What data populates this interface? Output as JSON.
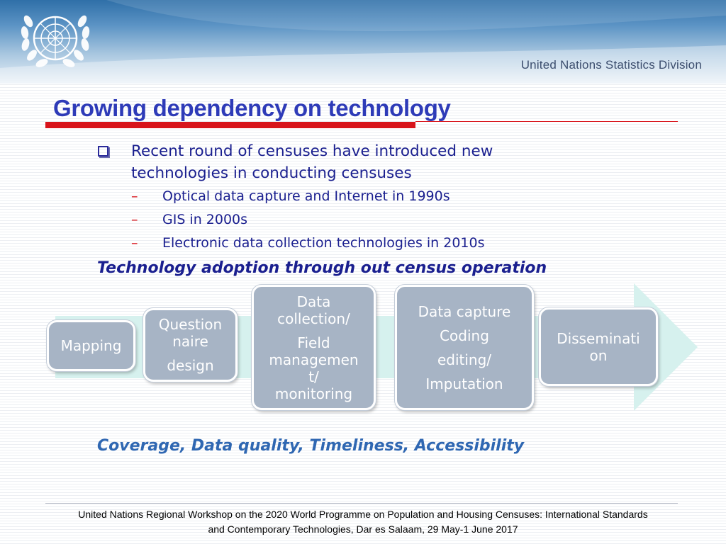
{
  "header": {
    "division": "United Nations Statistics Division",
    "logo_icon": "un-emblem-icon",
    "colors": {
      "band_top": "#2f6fa8",
      "band_bottom": "#e9f0f7"
    }
  },
  "slide": {
    "title": "Growing dependency on technology",
    "bullet": {
      "icon": "checkbox-bullet-icon",
      "text": "Recent round of censuses have introduced new technologies in conducting censuses",
      "subitems": [
        {
          "dash": "–",
          "text": "Optical data capture and Internet  in 1990s"
        },
        {
          "dash": "–",
          "text": "GIS in 2000s"
        },
        {
          "dash": "–",
          "text": "Electronic data collection technologies in 2010s"
        }
      ]
    },
    "adoption_heading": "Technology adoption through out census operation",
    "process": {
      "arrow_icon": "process-arrow-icon",
      "stages": [
        {
          "name": "mapping",
          "lines": [
            "Mapping"
          ]
        },
        {
          "name": "questionnaire",
          "lines": [
            "Question",
            "naire",
            "design"
          ]
        },
        {
          "name": "data-collection",
          "lines": [
            "Data",
            "collection/",
            "Field",
            "managemen",
            "t/",
            "monitoring"
          ]
        },
        {
          "name": "data-capture",
          "lines": [
            "Data capture",
            "Coding",
            "editing/",
            "Imputation"
          ]
        },
        {
          "name": "dissemination",
          "lines": [
            "Disseminati",
            "on"
          ]
        }
      ]
    },
    "coverage": "Coverage, Data quality, Timeliness, Accessibility",
    "colors": {
      "title": "#2e3bb8",
      "accent_red": "#d8141b",
      "body_text": "#1a1f8f",
      "stage_box": "#a7b4c5",
      "arrow": "#d6f1ee"
    }
  },
  "footer": {
    "line1": "United Nations Regional Workshop on the 2020 World Programme on Population and Housing Censuses: International Standards",
    "line2": "and Contemporary Technologies, Dar es Salaam, 29 May-1 June  2017"
  }
}
